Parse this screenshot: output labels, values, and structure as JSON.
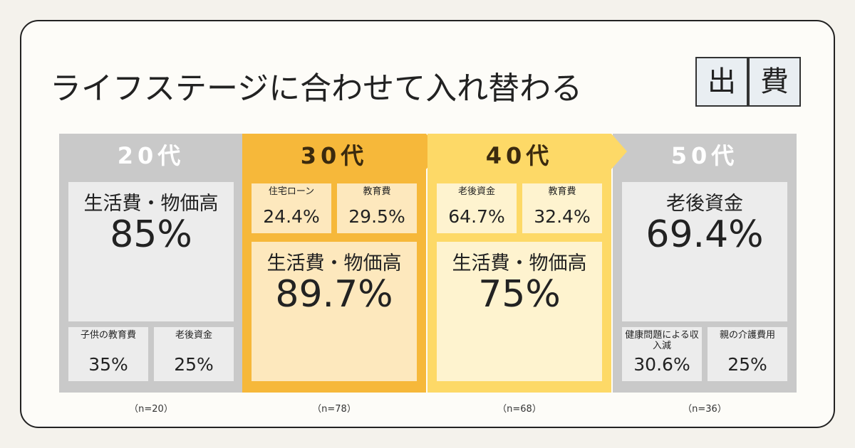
{
  "title": "ライフステージに合わせて入れ替わる",
  "badge": [
    "出",
    "費"
  ],
  "columns": [
    {
      "label": "20代",
      "main": {
        "label": "生活費・物価高",
        "value": "85%"
      },
      "subs": [
        {
          "label": "子供の教育費",
          "value": "35%"
        },
        {
          "label": "老後資金",
          "value": "25%"
        }
      ],
      "n": "（n=20）"
    },
    {
      "label": "30代",
      "main": {
        "label": "生活費・物価高",
        "value": "89.7%"
      },
      "subs": [
        {
          "label": "住宅ローン",
          "value": "24.4%"
        },
        {
          "label": "教育費",
          "value": "29.5%"
        }
      ],
      "n": "（n=78）"
    },
    {
      "label": "40代",
      "main": {
        "label": "生活費・物価高",
        "value": "75%"
      },
      "subs": [
        {
          "label": "老後資金",
          "value": "64.7%"
        },
        {
          "label": "教育費",
          "value": "32.4%"
        }
      ],
      "n": "（n=68）"
    },
    {
      "label": "50代",
      "main": {
        "label": "老後資金",
        "value": "69.4%"
      },
      "subs": [
        {
          "label": "健康問題による収入減",
          "value": "30.6%"
        },
        {
          "label": "親の介護費用",
          "value": "25%"
        }
      ],
      "n": "（n=36）"
    }
  ]
}
